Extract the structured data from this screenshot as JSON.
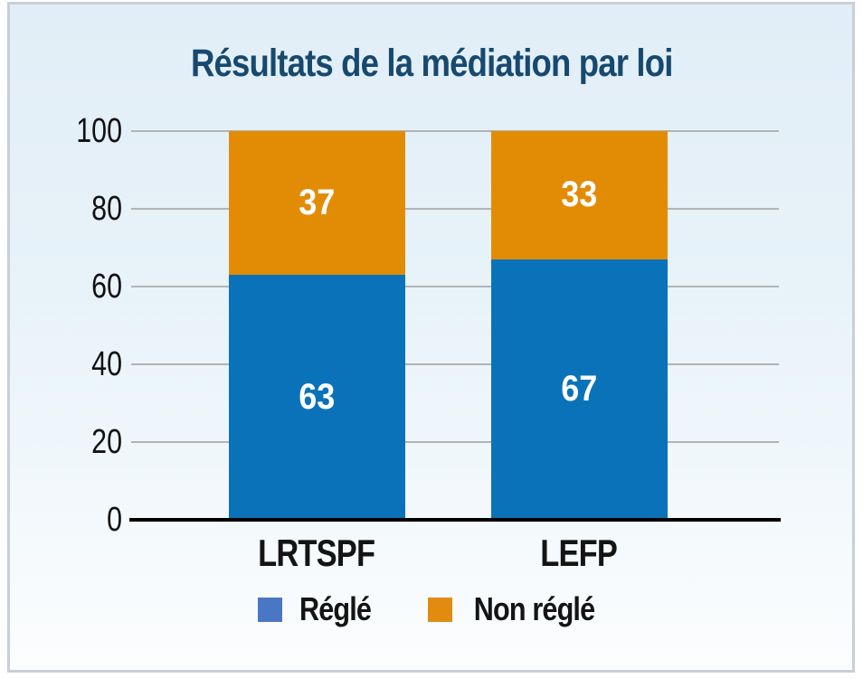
{
  "panel": {
    "border_color": "#c9cfd8",
    "background_top": "#e2eef7",
    "background_bottom": "#fcfdfe"
  },
  "chart_data": {
    "type": "bar",
    "stacked": true,
    "title": "Résultats de la médiation par loi",
    "title_color": "#17496F",
    "categories": [
      "LRTSPF",
      "LEFP"
    ],
    "series": [
      {
        "name": "Réglé",
        "slug": "regle",
        "values": [
          63,
          67
        ],
        "bar_color": "#0A72B9",
        "legend_color": "#4A77C4"
      },
      {
        "name": "Non réglé",
        "slug": "non-regle",
        "values": [
          37,
          33
        ],
        "bar_color": "#E28C05",
        "legend_color": "#E18C10"
      }
    ],
    "y_ticks": [
      0,
      20,
      40,
      60,
      80,
      100
    ],
    "ylim": [
      0,
      100
    ],
    "grid": true,
    "gridline_color": "#b1b3b5",
    "axis_color": "#000000",
    "tick_label_color": "#111111",
    "value_label_color": "#ffffff",
    "legend_position": "bottom"
  }
}
